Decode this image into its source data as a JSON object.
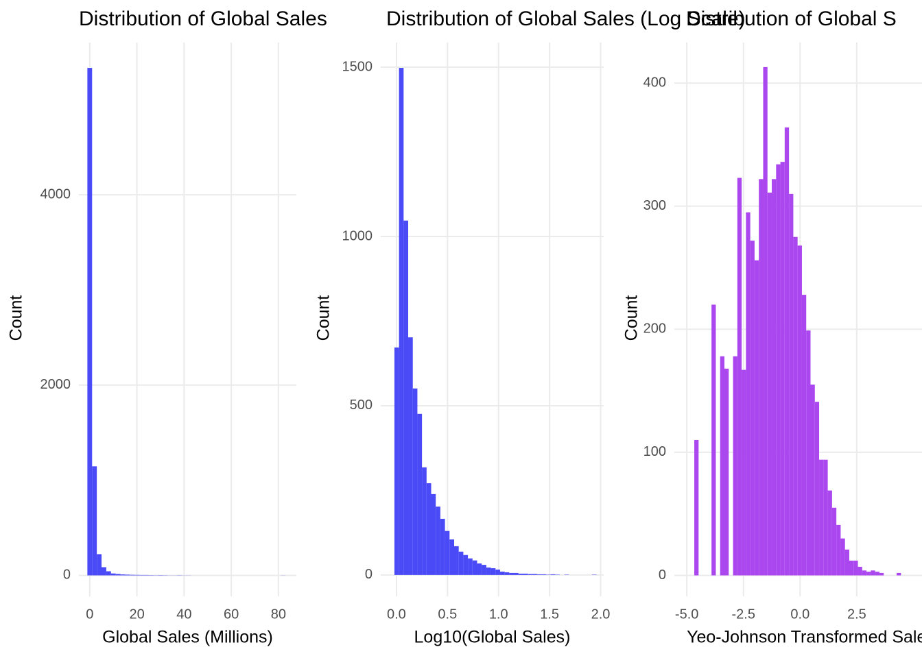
{
  "chart_data": [
    {
      "type": "histogram",
      "title": "Distribution of Global Sales",
      "x_label": "Global Sales (Millions)",
      "y_label": "Count",
      "bins": [
        -1,
        1,
        3,
        5,
        7,
        9,
        11,
        13,
        15,
        17,
        19,
        21,
        23,
        25,
        27,
        29,
        31,
        33,
        35,
        37,
        39,
        41,
        43,
        45,
        47,
        49,
        51,
        53,
        55,
        57,
        59,
        61,
        63,
        65,
        67,
        69,
        71,
        73,
        75,
        77,
        79,
        81,
        83,
        85
      ],
      "values": [
        5333,
        1146,
        223,
        86,
        43,
        20,
        15,
        10,
        8,
        6,
        5,
        4,
        4,
        3,
        2,
        3,
        2,
        1,
        1,
        2,
        1,
        1,
        0,
        0,
        0,
        0,
        0,
        0,
        0,
        0,
        0,
        0,
        0,
        0,
        0,
        0,
        0,
        0,
        0,
        0,
        0,
        1,
        0
      ],
      "color": "#4a4af7",
      "xlim": [
        -4.6,
        87.6
      ],
      "ylim": [
        -220,
        5600
      ],
      "xticks": [
        0,
        20,
        40,
        60,
        80
      ],
      "yticks": [
        0,
        2000,
        4000
      ],
      "grid": true
    },
    {
      "type": "histogram",
      "title": "Distribution of Global Sales (Log Scale)",
      "x_label": "Log10(Global Sales)",
      "y_label": "Count",
      "bins": [
        -0.02,
        0.025,
        0.07,
        0.115,
        0.16,
        0.205,
        0.25,
        0.295,
        0.34,
        0.385,
        0.43,
        0.475,
        0.52,
        0.565,
        0.61,
        0.655,
        0.7,
        0.745,
        0.79,
        0.835,
        0.88,
        0.925,
        0.97,
        1.015,
        1.06,
        1.105,
        1.15,
        1.195,
        1.24,
        1.285,
        1.33,
        1.375,
        1.42,
        1.465,
        1.51,
        1.555,
        1.6,
        1.645,
        1.69,
        1.735,
        1.78,
        1.825,
        1.87,
        1.915,
        1.96
      ],
      "values": [
        672,
        1498,
        1047,
        702,
        551,
        476,
        318,
        271,
        239,
        202,
        166,
        130,
        105,
        85,
        69,
        59,
        49,
        43,
        34,
        30,
        22,
        20,
        16,
        10,
        8,
        6,
        6,
        4,
        4,
        3,
        3,
        2,
        2,
        1,
        2,
        1,
        0,
        1,
        0,
        0,
        0,
        0,
        0,
        1
      ],
      "color": "#4a4af7",
      "xlim": [
        -0.154,
        2.03
      ],
      "ylim": [
        -63,
        1573
      ],
      "xticks": [
        {
          "value": 0,
          "label": "0.0"
        },
        0.5,
        {
          "value": 1,
          "label": "1.0"
        },
        1.5,
        {
          "value": 2,
          "label": "2.0"
        }
      ],
      "yticks": [
        0,
        500,
        1000,
        1500
      ],
      "grid": true
    },
    {
      "type": "histogram",
      "title": "Distribution of Global S",
      "x_label": "Yeo-Johnson Transformed Sales",
      "y_label": "Count",
      "bins": [
        -4.67,
        -4.48,
        -4.29,
        -4.1,
        -3.91,
        -3.72,
        -3.53,
        -3.34,
        -3.15,
        -2.96,
        -2.77,
        -2.58,
        -2.39,
        -2.2,
        -2.01,
        -1.82,
        -1.63,
        -1.44,
        -1.25,
        -1.06,
        -0.87,
        -0.68,
        -0.49,
        -0.3,
        -0.11,
        0.08,
        0.27,
        0.46,
        0.65,
        0.84,
        1.03,
        1.22,
        1.41,
        1.6,
        1.79,
        1.98,
        2.17,
        2.36,
        2.55,
        2.74,
        2.93,
        3.12,
        3.31,
        3.5,
        3.69,
        3.88,
        4.07,
        4.26,
        4.45,
        4.64
      ],
      "values": [
        110,
        0,
        0,
        0,
        220,
        0,
        178,
        168,
        0,
        178,
        323,
        167,
        295,
        272,
        256,
        322,
        413,
        311,
        322,
        334,
        336,
        364,
        310,
        275,
        268,
        228,
        199,
        155,
        141,
        94,
        94,
        69,
        55,
        41,
        30,
        21,
        12,
        12,
        7,
        4,
        3,
        4,
        3,
        2,
        0,
        0,
        0,
        2,
        0
      ],
      "color": "#ab47ee",
      "xlim": [
        -5.55,
        6.5
      ],
      "ylim": [
        -17,
        433
      ],
      "xticks": [
        {
          "value": -5,
          "label": "-5.0"
        },
        -2.5,
        {
          "value": 0,
          "label": "0.0"
        },
        2.5
      ],
      "yticks": [
        0,
        100,
        200,
        300,
        400
      ],
      "grid": true
    }
  ]
}
